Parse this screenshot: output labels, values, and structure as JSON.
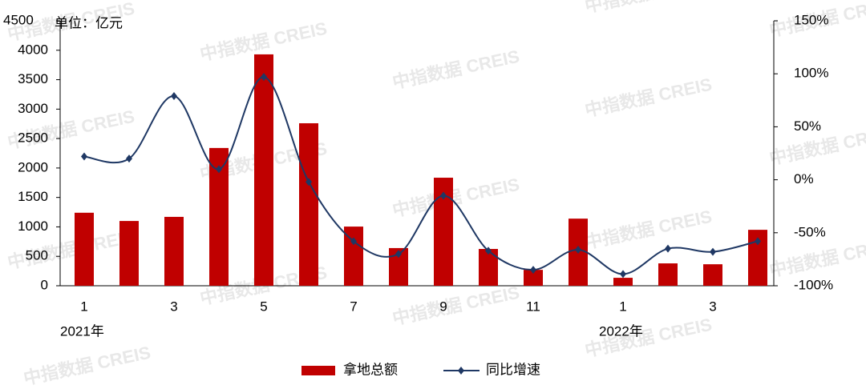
{
  "chart_data": {
    "type": "bar-line",
    "unit": "单位：亿元",
    "watermark": "中指数据 CREIS",
    "categories": [
      "1",
      null,
      "3",
      null,
      "5",
      null,
      "7",
      null,
      "9",
      null,
      "11",
      null,
      "1",
      null,
      "3",
      null
    ],
    "years": [
      "2021年",
      "2022年"
    ],
    "series": [
      {
        "name": "拿地总额",
        "type": "bar",
        "color": "#c00000",
        "values": [
          1240,
          1100,
          1170,
          2340,
          3930,
          2760,
          1005,
          640,
          1835,
          625,
          270,
          1140,
          135,
          380,
          365,
          950
        ]
      },
      {
        "name": "同比增速",
        "type": "line",
        "axis": "y2",
        "color": "#1f3864",
        "values": [
          22,
          20,
          79,
          10,
          97,
          -2,
          -58,
          -70,
          -15,
          -67,
          -85,
          -66,
          -89,
          -65,
          -68,
          -58
        ]
      }
    ],
    "ylim": [
      0,
      4500
    ],
    "yticks": [
      0,
      500,
      1000,
      1500,
      2000,
      2500,
      3000,
      3500,
      4000,
      4500
    ],
    "y2lim": [
      -100,
      150
    ],
    "y2ticks": [
      {
        "value": -100,
        "label": "-100%"
      },
      {
        "value": -50,
        "label": "-50%"
      },
      {
        "value": 0,
        "label": "0%"
      },
      {
        "value": 50,
        "label": "50%"
      },
      {
        "value": 100,
        "label": "100%"
      },
      {
        "value": 150,
        "label": "150%"
      }
    ],
    "legend": "bottom"
  }
}
